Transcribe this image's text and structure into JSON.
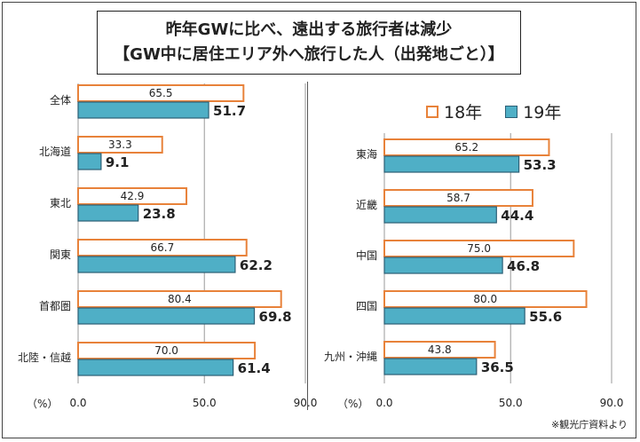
{
  "title": {
    "line1": "昨年GWに比べ、遠出する旅行者は減少",
    "line2": "【GW中に居住エリア外へ旅行した人（出発地ごと）】"
  },
  "legend": {
    "s18": "18年",
    "s19": "19年"
  },
  "unit_label": "（%）",
  "source": "※観光庁資料より",
  "colors": {
    "y18_stroke": "#E8823A",
    "y19_fill": "#4FAFC6",
    "y19_stroke": "#2C5F75"
  },
  "chart_data": [
    {
      "type": "bar",
      "orientation": "horizontal",
      "categories": [
        "全体",
        "北海道",
        "東北",
        "関東",
        "首都圏",
        "北陸・信越"
      ],
      "series": [
        {
          "name": "18年",
          "values": [
            65.5,
            33.3,
            42.9,
            66.7,
            80.4,
            70.0
          ],
          "labels": [
            "65.5",
            "33.3",
            "42.9",
            "66.7",
            "80.4",
            "70.0"
          ]
        },
        {
          "name": "19年",
          "values": [
            51.7,
            9.1,
            23.8,
            62.2,
            69.8,
            61.4
          ],
          "labels": [
            "51.7",
            "9.1",
            "23.8",
            "62.2",
            "69.8",
            "61.4"
          ]
        }
      ],
      "xlim": [
        0,
        90
      ],
      "xticks": [
        "0.0",
        "50.0",
        "90.0"
      ],
      "grid": true
    },
    {
      "type": "bar",
      "orientation": "horizontal",
      "categories": [
        "東海",
        "近畿",
        "中国",
        "四国",
        "九州・沖縄"
      ],
      "series": [
        {
          "name": "18年",
          "values": [
            65.2,
            58.7,
            75.0,
            80.0,
            43.8
          ],
          "labels": [
            "65.2",
            "58.7",
            "75.0",
            "80.0",
            "43.8"
          ]
        },
        {
          "name": "19年",
          "values": [
            53.3,
            44.4,
            46.8,
            55.6,
            36.5
          ],
          "labels": [
            "53.3",
            "44.4",
            "46.8",
            "55.6",
            "36.5"
          ]
        }
      ],
      "xlim": [
        0,
        90
      ],
      "xticks": [
        "0.0",
        "50.0",
        "90.0"
      ],
      "grid": true
    }
  ]
}
